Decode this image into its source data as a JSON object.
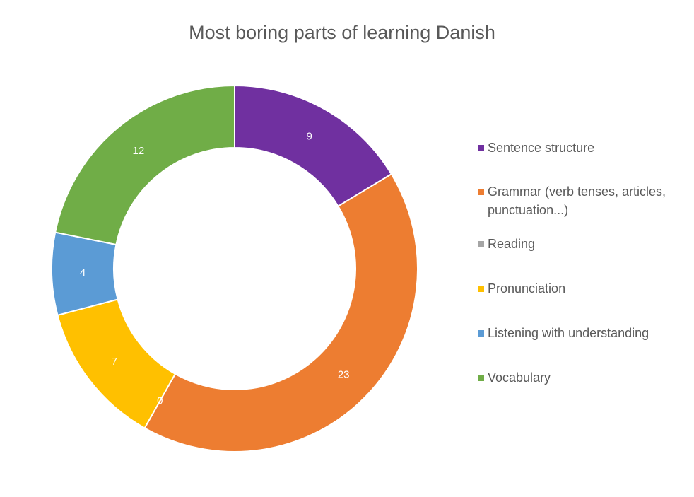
{
  "chart_data": {
    "type": "pie",
    "style": "donut",
    "title": "Most boring parts of learning Danish",
    "categories": [
      "Sentence structure",
      "Grammar (verb tenses, articles, punctuation...)",
      "Reading",
      "Pronunciation",
      "Listening with understanding",
      "Vocabulary"
    ],
    "values": [
      9,
      23,
      0,
      7,
      4,
      12
    ],
    "colors": [
      "#7030A0",
      "#ED7D31",
      "#A5A5A5",
      "#FFC000",
      "#5B9BD5",
      "#70AD47"
    ],
    "legend_position": "right"
  }
}
